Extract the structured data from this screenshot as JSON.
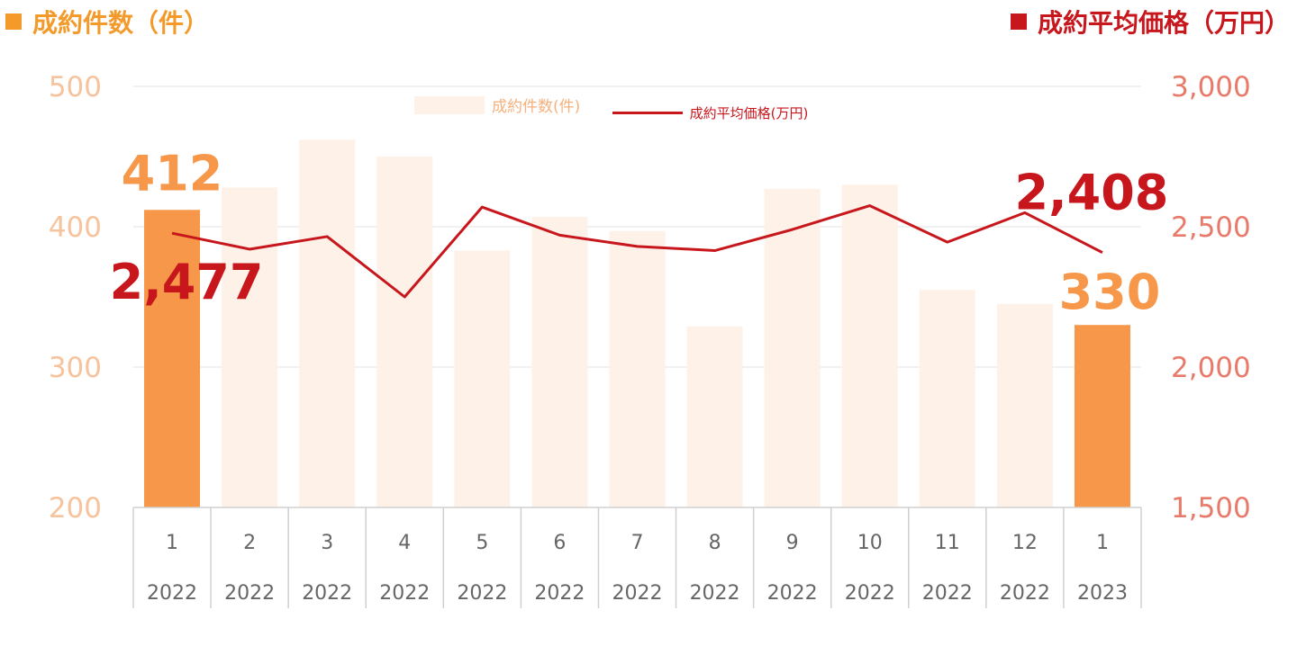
{
  "header": {
    "left_title": "成約件数（件）",
    "right_title": "成約平均価格（万円）",
    "left_color": "#f39a2b",
    "right_color": "#c8161d"
  },
  "chart_data": {
    "type": "bar",
    "categories": [
      "1",
      "2",
      "3",
      "4",
      "5",
      "6",
      "7",
      "8",
      "9",
      "10",
      "11",
      "12",
      "1"
    ],
    "years": [
      "2022",
      "2022",
      "2022",
      "2022",
      "2022",
      "2022",
      "2022",
      "2022",
      "2022",
      "2022",
      "2022",
      "2022",
      "2023"
    ],
    "series": [
      {
        "name": "成約件数(件)",
        "type": "bar",
        "axis": "left",
        "values": [
          412,
          428,
          462,
          450,
          383,
          407,
          397,
          329,
          427,
          430,
          355,
          345,
          330
        ],
        "color": "#fdf1e8",
        "highlight_color": "#f6974a",
        "highlight_indices": [
          0,
          12
        ]
      },
      {
        "name": "成約平均価格(万円)",
        "type": "line",
        "axis": "right",
        "values": [
          2477,
          2420,
          2465,
          2250,
          2570,
          2470,
          2430,
          2415,
          2490,
          2575,
          2445,
          2550,
          2408
        ],
        "color": "#c8161d"
      }
    ],
    "left_axis": {
      "min": 200,
      "max": 500,
      "ticks": [
        "200",
        "300",
        "400",
        "500"
      ],
      "color": "#f6c39c"
    },
    "right_axis": {
      "min": 1500,
      "max": 3000,
      "ticks": [
        "1,500",
        "2,000",
        "2,500",
        "3,000"
      ],
      "color": "#e87a6a"
    },
    "annotations": {
      "bar_first": "412",
      "bar_last": "330",
      "line_first": "2,477",
      "line_last": "2,408"
    },
    "grid": true,
    "legend_position": "top-center"
  }
}
